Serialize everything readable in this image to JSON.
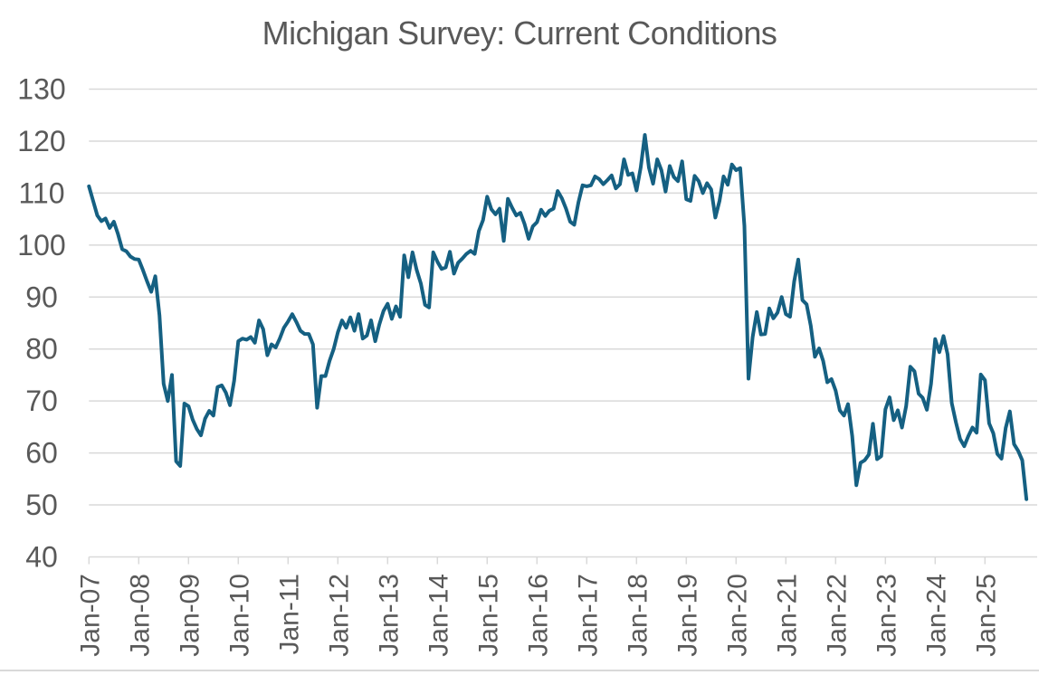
{
  "title": "Michigan Survey: Current Conditions",
  "colors": {
    "line": "#156082",
    "text": "#595959",
    "grid": "#d9d9d9",
    "axis": "#d9d9d9",
    "background": "#ffffff",
    "divider": "#d9d9d9"
  },
  "chart_data": {
    "type": "line",
    "title": "Michigan Survey: Current Conditions",
    "frequency": "monthly",
    "start_month": "2007-01",
    "end_month": "2025-11",
    "xlabel": "",
    "ylabel": "",
    "ylim": [
      40,
      130
    ],
    "y_ticks": [
      130,
      120,
      110,
      100,
      90,
      80,
      70,
      60,
      50,
      40
    ],
    "x_tick_labels": [
      "Jan-07",
      "Jan-08",
      "Jan-09",
      "Jan-10",
      "Jan-11",
      "Jan-12",
      "Jan-13",
      "Jan-14",
      "Jan-15",
      "Jan-16",
      "Jan-17",
      "Jan-18",
      "Jan-19",
      "Jan-20",
      "Jan-21",
      "Jan-22",
      "Jan-23",
      "Jan-24",
      "Jan-25"
    ],
    "grid": true,
    "legend": false,
    "series": [
      {
        "name": "Current Conditions",
        "color": "#156082",
        "values": [
          111.3,
          108.5,
          105.7,
          104.6,
          105.1,
          103.3,
          104.5,
          102.1,
          99.2,
          98.8,
          97.8,
          97.3,
          97.2,
          95.2,
          93.0,
          91.0,
          94.0,
          86.5,
          73.3,
          70.0,
          75.0,
          58.4,
          57.5,
          69.5,
          69.0,
          66.4,
          64.6,
          63.4,
          66.6,
          68.1,
          67.2,
          72.7,
          73.0,
          71.6,
          69.2,
          73.9,
          81.5,
          82.0,
          81.8,
          82.3,
          81.2,
          85.5,
          83.8,
          78.8,
          80.9,
          80.3,
          82.0,
          84.1,
          85.3,
          86.7,
          85.2,
          83.5,
          82.9,
          82.9,
          80.9,
          68.7,
          74.8,
          74.8,
          77.7,
          80.0,
          83.2,
          85.5,
          84.1,
          86.1,
          83.5,
          86.7,
          82.0,
          82.6,
          85.5,
          81.5,
          84.7,
          87.3,
          88.7,
          85.8,
          88.2,
          86.2,
          98.0,
          93.8,
          98.6,
          95.2,
          92.6,
          88.5,
          88.0,
          98.6,
          96.8,
          95.4,
          95.7,
          98.7,
          94.5,
          96.6,
          97.4,
          98.3,
          98.9,
          98.3,
          102.7,
          104.8,
          109.3,
          106.9,
          105.9,
          107.0,
          100.8,
          108.9,
          107.2,
          105.7,
          106.2,
          104.1,
          101.2,
          103.6,
          104.4,
          106.8,
          105.6,
          106.6,
          107.0,
          110.4,
          109.0,
          107.0,
          104.5,
          103.9,
          108.2,
          111.5,
          111.3,
          111.5,
          113.2,
          112.7,
          111.7,
          112.5,
          113.4,
          110.9,
          111.7,
          116.5,
          113.5,
          113.8,
          110.5,
          114.9,
          121.2,
          114.9,
          111.8,
          116.5,
          114.4,
          110.3,
          115.2,
          113.1,
          112.3,
          116.1,
          108.8,
          108.5,
          113.3,
          112.3,
          110.0,
          111.9,
          110.7,
          105.3,
          108.5,
          113.2,
          111.6,
          115.5,
          114.4,
          114.8,
          103.7,
          74.3,
          82.3,
          87.1,
          82.8,
          82.9,
          87.8,
          85.9,
          87.0,
          90.0,
          86.7,
          86.2,
          93.0,
          97.2,
          89.4,
          88.6,
          84.5,
          78.5,
          80.1,
          77.7,
          73.6,
          74.2,
          72.0,
          68.2,
          67.2,
          69.4,
          63.3,
          53.8,
          58.1,
          58.6,
          59.7,
          65.6,
          58.8,
          59.4,
          68.4,
          70.7,
          66.3,
          68.2,
          64.9,
          69.0,
          76.6,
          75.7,
          71.4,
          70.6,
          68.3,
          73.3,
          81.9,
          79.4,
          82.5,
          79.0,
          69.6,
          65.9,
          62.7,
          61.3,
          63.3,
          64.9,
          63.9,
          75.1,
          74.0,
          65.7,
          63.8,
          59.8,
          58.9,
          64.8,
          68.0,
          61.7,
          60.4,
          58.6,
          51.1
        ]
      }
    ]
  }
}
